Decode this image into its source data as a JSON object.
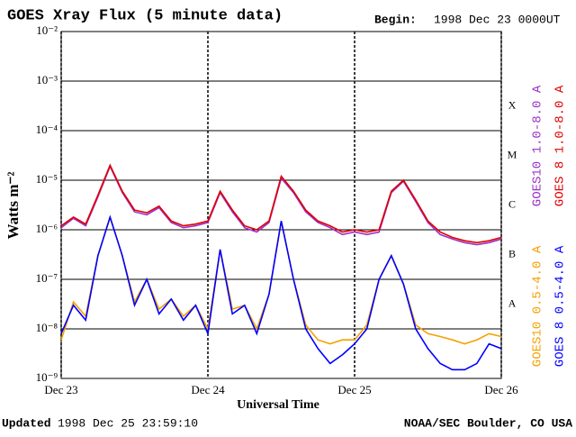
{
  "chart_data": {
    "type": "line",
    "title": "GOES Xray Flux (5 minute data)",
    "begin_label": "Begin:",
    "begin_value": "1998 Dec 23 0000UT",
    "x_label": "Universal Time",
    "y_label": "Watts m⁻²",
    "updated_label": "Updated",
    "updated_value": "1998 Dec 25 23:59:10",
    "credit": "NOAA/SEC Boulder, CO USA",
    "flare_classes": [
      "A",
      "B",
      "C",
      "M",
      "X"
    ],
    "y_scale": "log",
    "grid": true,
    "xlim": [
      0,
      72
    ],
    "xticks": [
      {
        "value": 0,
        "label": "Dec 23"
      },
      {
        "value": 24,
        "label": "Dec 24"
      },
      {
        "value": 48,
        "label": "Dec 25"
      },
      {
        "value": 72,
        "label": "Dec 26"
      }
    ],
    "ylim": [
      1e-09,
      0.01
    ],
    "yticks": [
      {
        "value": 1e-09,
        "label": "10⁻⁹"
      },
      {
        "value": 1e-08,
        "label": "10⁻⁸"
      },
      {
        "value": 1e-07,
        "label": "10⁻⁷"
      },
      {
        "value": 1e-06,
        "label": "10⁻⁶"
      },
      {
        "value": 1e-05,
        "label": "10⁻⁵"
      },
      {
        "value": 0.0001,
        "label": "10⁻⁴"
      },
      {
        "value": 0.001,
        "label": "10⁻³"
      },
      {
        "value": 0.01,
        "label": "10⁻²"
      }
    ],
    "x": [
      0,
      2,
      4,
      6,
      8,
      10,
      12,
      14,
      16,
      18,
      20,
      22,
      24,
      26,
      28,
      30,
      32,
      34,
      36,
      38,
      40,
      42,
      44,
      46,
      48,
      50,
      52,
      54,
      56,
      58,
      60,
      62,
      64,
      66,
      68,
      70,
      72
    ],
    "series": [
      {
        "name": "GOES10 0.5-4.0 A",
        "color": "#f5a000",
        "legend_column": 0,
        "values": [
          6e-09,
          3.5e-08,
          1.8e-08,
          3e-07,
          1.8e-06,
          3e-07,
          3.5e-08,
          1e-07,
          2.5e-08,
          4e-08,
          1.8e-08,
          3e-08,
          1e-08,
          4e-07,
          2.5e-08,
          3e-08,
          1e-08,
          5e-08,
          1.5e-06,
          1e-07,
          1.2e-08,
          6e-09,
          5e-09,
          6e-09,
          6e-09,
          1.2e-08,
          1e-07,
          3e-07,
          8e-08,
          1.2e-08,
          8e-09,
          7e-09,
          6e-09,
          5e-09,
          6e-09,
          8e-09,
          7e-09
        ]
      },
      {
        "name": "GOES 8 0.5-4.0 A",
        "color": "#0000ff",
        "legend_column": 1,
        "values": [
          8e-09,
          3e-08,
          1.5e-08,
          3e-07,
          1.8e-06,
          3e-07,
          3e-08,
          1e-07,
          2e-08,
          4e-08,
          1.5e-08,
          3e-08,
          8e-09,
          4e-07,
          2e-08,
          3e-08,
          8e-09,
          5e-08,
          1.5e-06,
          1e-07,
          1e-08,
          4e-09,
          2e-09,
          3e-09,
          5e-09,
          1e-08,
          1e-07,
          3e-07,
          8e-08,
          1e-08,
          4e-09,
          2e-09,
          1.5e-09,
          1.5e-09,
          2e-09,
          5e-09,
          4e-09
        ]
      },
      {
        "name": "GOES10 1.0-8.0 A",
        "color": "#9b30c8",
        "legend_column": 0,
        "values": [
          1.1e-06,
          1.7e-06,
          1.2e-06,
          4.6e-06,
          1.9e-05,
          5.6e-06,
          2.3e-06,
          2e-06,
          2.8e-06,
          1.4e-06,
          1.1e-06,
          1.2e-06,
          1.4e-06,
          5.6e-06,
          2.3e-06,
          1.1e-06,
          9e-07,
          1.4e-06,
          1.1e-05,
          5.6e-06,
          2.3e-06,
          1.4e-06,
          1.1e-06,
          8e-07,
          9e-07,
          8e-07,
          9e-07,
          5.6e-06,
          9.5e-06,
          3.7e-06,
          1.4e-06,
          8e-07,
          6.5e-07,
          5.5e-07,
          5e-07,
          5.5e-07,
          6.5e-07
        ]
      },
      {
        "name": "GOES 8 1.0-8.0 A",
        "color": "#e00000",
        "legend_column": 1,
        "values": [
          1.2e-06,
          1.8e-06,
          1.3e-06,
          5e-06,
          2e-05,
          6e-06,
          2.5e-06,
          2.2e-06,
          3e-06,
          1.5e-06,
          1.2e-06,
          1.3e-06,
          1.5e-06,
          6e-06,
          2.5e-06,
          1.2e-06,
          1e-06,
          1.5e-06,
          1.2e-05,
          6e-06,
          2.5e-06,
          1.5e-06,
          1.2e-06,
          9e-07,
          1e-06,
          9e-07,
          1e-06,
          6e-06,
          1e-05,
          4e-06,
          1.5e-06,
          9e-07,
          7e-07,
          6e-07,
          5.5e-07,
          6e-07,
          7e-07
        ]
      }
    ]
  }
}
